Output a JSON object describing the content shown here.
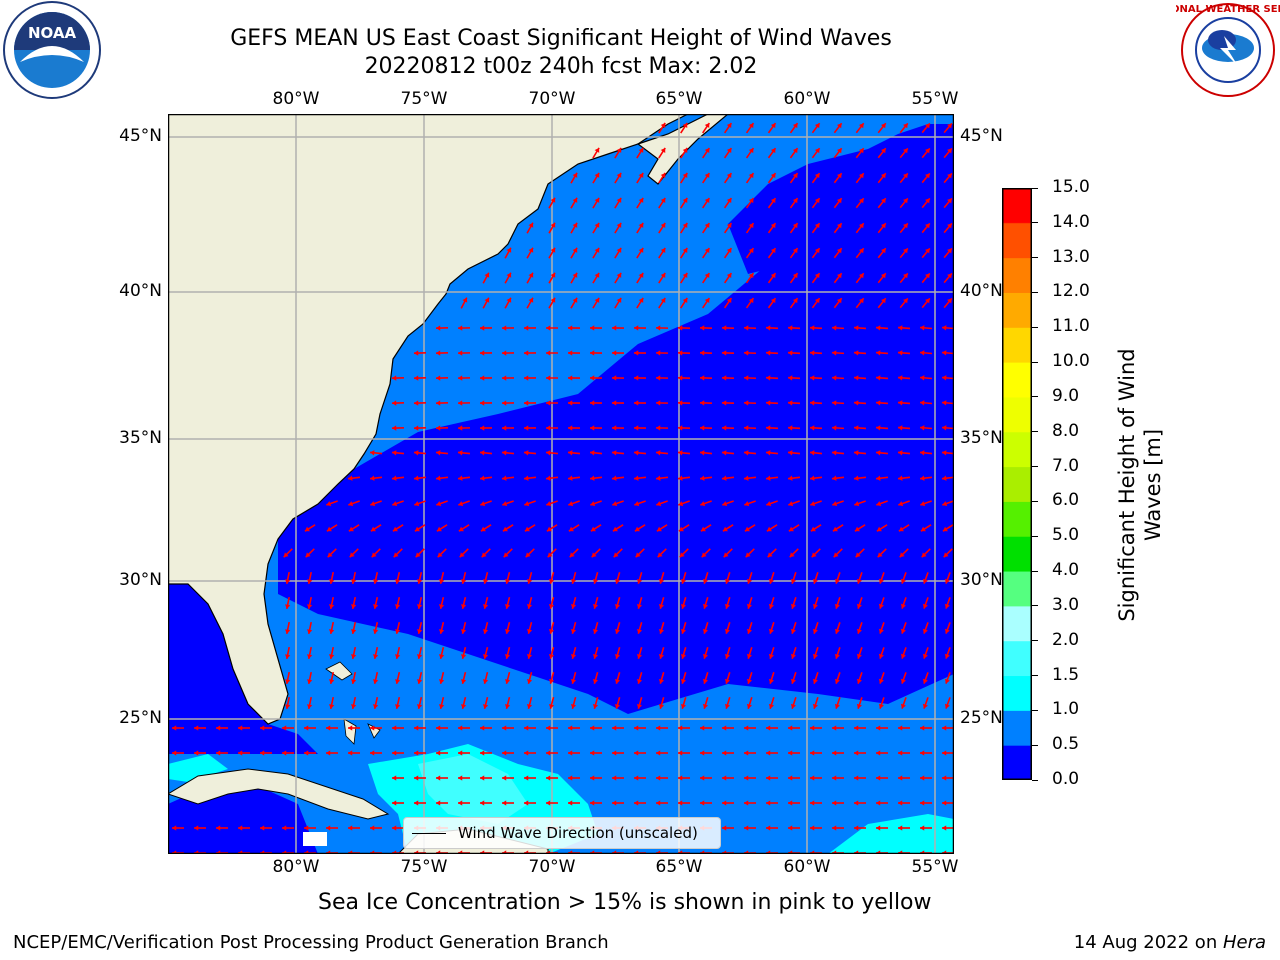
{
  "title": {
    "line1": "GEFS MEAN US East Coast Significant Height of Wind Waves",
    "line2": "20220812 t00z 240h fcst   Max: 2.02"
  },
  "map": {
    "lon_labels": [
      "80°W",
      "75°W",
      "70°W",
      "65°W",
      "60°W",
      "55°W"
    ],
    "lat_labels": [
      "45°N",
      "40°N",
      "35°N",
      "30°N",
      "25°N"
    ],
    "extent": {
      "lon": [
        -85,
        -54.2
      ],
      "lat": [
        20.5,
        45.8
      ]
    },
    "gridlines": true,
    "colors": {
      "land": "#efefdb",
      "bin_0": "#0000ff",
      "bin_05": "#0080ff",
      "bin_1": "#00ffff",
      "bin_15": "#40ffff",
      "arrow": "#ff0000",
      "grid": "#b0b0b0"
    },
    "legend": {
      "label": "Wind Wave Direction (unscaled)",
      "placement": "lower-center"
    }
  },
  "colorbar": {
    "ticks": [
      "15.0",
      "14.0",
      "13.0",
      "12.0",
      "11.0",
      "10.0",
      "9.0",
      "8.0",
      "7.0",
      "6.0",
      "5.0",
      "4.0",
      "3.0",
      "2.0",
      "1.5",
      "1.0",
      "0.5",
      "0.0"
    ],
    "colors_bottom_to_top": [
      "#0000ff",
      "#0080ff",
      "#00ffff",
      "#40ffff",
      "#80ffff",
      "#aaffff",
      "#55ff80",
      "#33ff33",
      "#00e000",
      "#55f000",
      "#aaee00",
      "#ccff00",
      "#eeff00",
      "#ffff00",
      "#ffd700",
      "#ffaa00",
      "#ff8000",
      "#ff5000",
      "#ff2000",
      "#ff0000"
    ],
    "label_line1": "Significant Height of Wind",
    "label_line2": "Waves [m]"
  },
  "chart_data": {
    "type": "heatmap",
    "title": "GEFS MEAN US East Coast Significant Height of Wind Waves",
    "subtitle": "20220812 t00z 240h fcst   Max: 2.02",
    "max": 2.02,
    "units": "m",
    "levels": [
      0.0,
      0.5,
      1.0,
      1.5,
      2.0,
      3.0,
      4.0,
      5.0,
      6.0,
      7.0,
      8.0,
      9.0,
      10.0,
      11.0,
      12.0,
      13.0,
      14.0,
      15.0
    ]
  },
  "notes": {
    "ice": "Sea Ice Concentration > 15% is shown in pink to yellow"
  },
  "footer": {
    "left": "NCEP/EMC/Verification Post Processing Product Generation Branch",
    "right_date": "14 Aug 2022 on ",
    "right_host": "Hera"
  },
  "logos": {
    "left_text": "NOAA",
    "right_text": "NATIONAL WEATHER SERVICE"
  }
}
